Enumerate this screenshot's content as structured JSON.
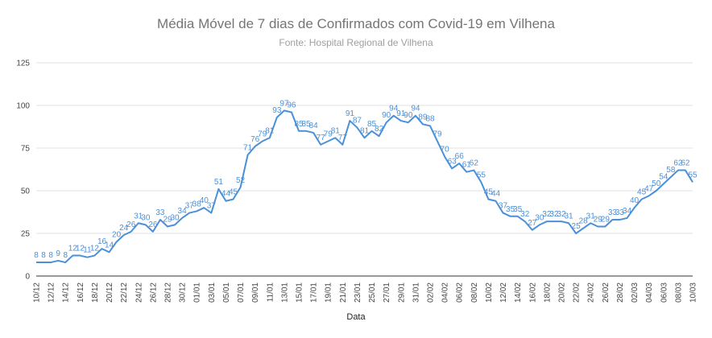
{
  "chart_data": {
    "type": "line",
    "title": "Média Móvel de 7 dias de Confirmados com Covid-19 em Vilhena",
    "subtitle": "Fonte: Hospital Regional de Vilhena",
    "xlabel": "Data",
    "ylabel": "",
    "ylim": [
      0,
      125
    ],
    "yticks": [
      0,
      25,
      50,
      75,
      100,
      125
    ],
    "grid": true,
    "line_color": "#4a90d9",
    "x_tick_labels": [
      "10/12",
      "12/12",
      "14/12",
      "16/12",
      "18/12",
      "20/12",
      "22/12",
      "24/12",
      "26/12",
      "28/12",
      "30/12",
      "01/01",
      "03/01",
      "05/01",
      "07/01",
      "09/01",
      "11/01",
      "13/01",
      "15/01",
      "17/01",
      "19/01",
      "21/01",
      "23/01",
      "25/01",
      "27/01",
      "29/01",
      "31/01",
      "02/02",
      "04/02",
      "06/02",
      "08/02",
      "10/02",
      "12/02",
      "14/02",
      "16/02",
      "18/02",
      "20/02",
      "22/02",
      "24/02",
      "26/02",
      "28/02",
      "02/03",
      "04/03",
      "06/03",
      "08/03",
      "10/03"
    ],
    "values": [
      8,
      8,
      8,
      9,
      8,
      12,
      12,
      11,
      12,
      16,
      14,
      20,
      24,
      26,
      31,
      30,
      26,
      33,
      29,
      30,
      34,
      37,
      38,
      40,
      37,
      51,
      44,
      45,
      52,
      71,
      76,
      79,
      81,
      93,
      97,
      96,
      85,
      85,
      84,
      77,
      79,
      81,
      77,
      91,
      87,
      81,
      85,
      82,
      90,
      94,
      91,
      90,
      94,
      89,
      88,
      79,
      70,
      63,
      66,
      61,
      62,
      55,
      45,
      44,
      37,
      35,
      35,
      32,
      27,
      30,
      32,
      32,
      32,
      31,
      25,
      28,
      31,
      29,
      29,
      33,
      33,
      34,
      40,
      45,
      47,
      50,
      54,
      58,
      62,
      62,
      55
    ],
    "data_labels": [
      "8",
      "8",
      "8",
      "9",
      "8",
      "12",
      "12",
      "11",
      "12",
      "16",
      "14",
      "20",
      "24",
      "26",
      "31",
      "30",
      "26",
      "33",
      "29",
      "30",
      "34",
      "37",
      "38",
      "40",
      "37",
      "51",
      "44",
      "45",
      "52",
      "71",
      "76",
      "79",
      "81",
      "93",
      "97",
      "96",
      "85",
      "85",
      "84",
      "77",
      "79",
      "81",
      "77",
      "91",
      "87",
      "81",
      "85",
      "82",
      "90",
      "94",
      "91",
      "90",
      "94",
      "89",
      "88",
      "79",
      "70",
      "63",
      "66",
      "61",
      "62",
      "55",
      "45",
      "44",
      "37",
      "35",
      "35",
      "32",
      "27",
      "30",
      "32",
      "32",
      "32",
      "31",
      "25",
      "28",
      "31",
      "29",
      "29",
      "33",
      "33",
      "34",
      "40",
      "45",
      "47",
      "50",
      "54",
      "58",
      "62",
      "62",
      "55"
    ]
  }
}
